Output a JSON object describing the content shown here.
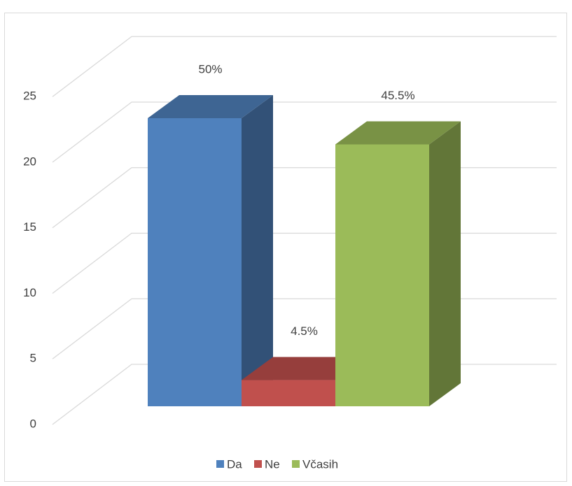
{
  "chart_data": {
    "type": "bar3d",
    "series": [
      {
        "name": "Da",
        "color": "#4f81bd",
        "values": [
          22
        ],
        "value_labels": [
          "50%"
        ]
      },
      {
        "name": "Ne",
        "color": "#c0504d",
        "values": [
          2
        ],
        "value_labels": [
          "4.5%"
        ]
      },
      {
        "name": "Včasih",
        "color": "#9bbb59",
        "values": [
          20
        ],
        "value_labels": [
          "45.5%"
        ]
      }
    ],
    "ylim": [
      0,
      25
    ],
    "yticks": [
      0,
      5,
      10,
      15,
      20,
      25
    ],
    "grid": true,
    "legend": "bottom"
  }
}
